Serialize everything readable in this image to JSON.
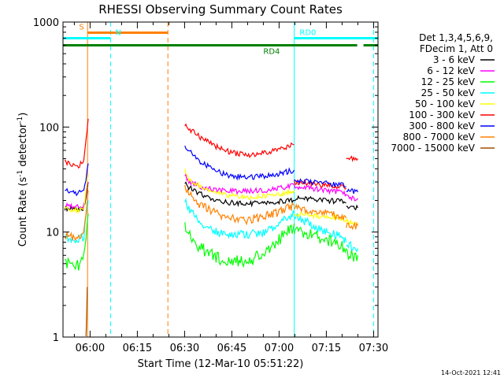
{
  "chart_data": {
    "type": "line",
    "title": "RHESSI Observing Summary Count Rates",
    "xlabel": "Start Time (12-Mar-10 05:51:22)",
    "ylabel_main": "Count Rate (s",
    "ylabel_sup1": "-1",
    "ylabel_mid": " detector",
    "ylabel_sup2": "-1",
    "ylabel_end": ")",
    "yscale": "log",
    "ylim": [
      1,
      1000
    ],
    "xlim_min": [
      -8.6,
      91.4
    ],
    "x_unit": "minutes after 06:00",
    "xticks": [
      {
        "label": "06:00",
        "min": 0
      },
      {
        "label": "06:15",
        "min": 15
      },
      {
        "label": "06:30",
        "min": 30
      },
      {
        "label": "06:45",
        "min": 45
      },
      {
        "label": "07:00",
        "min": 60
      },
      {
        "label": "07:15",
        "min": 75
      },
      {
        "label": "07:30",
        "min": 90
      }
    ],
    "yticks": [
      {
        "label": "1",
        "value": 1
      },
      {
        "label": "10",
        "value": 10
      },
      {
        "label": "100",
        "value": 100
      },
      {
        "label": "1000",
        "value": 1000
      }
    ],
    "legend_header": [
      "Det 1,3,4,5,6,9,",
      "FDecim 1, Att 0"
    ],
    "series": [
      {
        "name": "3 - 6 keV",
        "color": "#000000",
        "segments": [
          {
            "x": [
              -8.0,
              -6,
              -4,
              -2,
              -0.6
            ],
            "y": [
              17,
              16.5,
              16.5,
              17,
              30
            ]
          },
          {
            "x": [
              30.1,
              31,
              35,
              40,
              45,
              50,
              55,
              60,
              64.8
            ],
            "y": [
              30,
              27,
              23,
              20,
              19,
              18.5,
              19,
              19.5,
              20
            ]
          },
          {
            "x": [
              64.8,
              70,
              75,
              80,
              81.3
            ],
            "y": [
              21,
              20.5,
              20,
              19.5,
              19
            ]
          },
          {
            "x": [
              81.3,
              82,
              83,
              84,
              85
            ],
            "y": [
              18,
              17.5,
              17,
              17,
              17
            ]
          }
        ]
      },
      {
        "name": "6 - 12 keV",
        "color": "#ff00ff",
        "segments": [
          {
            "x": [
              -8.0,
              -6,
              -4,
              -2,
              -0.6
            ],
            "y": [
              18,
              17.5,
              17.5,
              18,
              30
            ]
          },
          {
            "x": [
              30.1,
              31,
              35,
              40,
              45,
              50,
              55,
              60,
              64.8
            ],
            "y": [
              35,
              31,
              27,
              25,
              24.5,
              24.5,
              25,
              26,
              28
            ]
          },
          {
            "x": [
              64.8,
              70,
              75,
              80,
              81.3
            ],
            "y": [
              27,
              26,
              25,
              24,
              23
            ]
          },
          {
            "x": [
              81.3,
              82,
              83,
              84,
              85
            ],
            "y": [
              22,
              21.5,
              21,
              21,
              21
            ]
          }
        ]
      },
      {
        "name": "12 - 25 keV",
        "color": "#00ff00",
        "segments": [
          {
            "x": [
              -8.0,
              -6,
              -4,
              -2,
              -0.6
            ],
            "y": [
              5.5,
              5,
              5,
              6,
              15
            ]
          },
          {
            "x": [
              30.1,
              31,
              35,
              40,
              45,
              50,
              55,
              60,
              64.8
            ],
            "y": [
              12,
              10,
              7.5,
              6,
              5.5,
              5.5,
              6.5,
              9,
              12
            ]
          },
          {
            "x": [
              64.8,
              70,
              75,
              80,
              81.3
            ],
            "y": [
              11,
              10,
              9,
              8,
              7
            ]
          },
          {
            "x": [
              81.3,
              82,
              83,
              84,
              85
            ],
            "y": [
              6.5,
              6.5,
              6.3,
              6.2,
              6
            ]
          }
        ]
      },
      {
        "name": "25 - 50 keV",
        "color": "#00ffff",
        "segments": [
          {
            "x": [
              -8.0,
              -6,
              -4,
              -2,
              -0.6
            ],
            "y": [
              9,
              8.5,
              8.5,
              9,
              20
            ]
          },
          {
            "x": [
              30.1,
              31,
              35,
              40,
              45,
              50,
              55,
              60,
              64.8
            ],
            "y": [
              20,
              17,
              12,
              10,
              9.5,
              9.5,
              10,
              12,
              15
            ]
          },
          {
            "x": [
              64.8,
              70,
              75,
              80,
              81.3
            ],
            "y": [
              14,
              12,
              10,
              9,
              8
            ]
          },
          {
            "x": [
              81.3,
              82,
              83,
              84,
              85
            ],
            "y": [
              7.5,
              7.5,
              7.3,
              7.2,
              7
            ]
          }
        ]
      },
      {
        "name": "50 - 100 keV",
        "color": "#ffff00",
        "segments": [
          {
            "x": [
              -8.0,
              -6,
              -4,
              -2,
              -0.6
            ],
            "y": [
              17,
              16,
              16,
              17,
              35
            ]
          },
          {
            "x": [
              30.1,
              31,
              35,
              40,
              45,
              50,
              55,
              60,
              64.8
            ],
            "y": [
              38,
              33,
              27,
              24,
              22,
              21.5,
              22,
              23,
              25
            ]
          },
          {
            "x": [
              64.8,
              70,
              75,
              80,
              81.3
            ],
            "y": [
              15,
              14.5,
              14,
              13.5,
              13
            ]
          },
          {
            "x": [
              81.3,
              82,
              83,
              84,
              85
            ],
            "y": [
              12.5,
              12.5,
              12.3,
              12.2,
              12
            ]
          }
        ]
      },
      {
        "name": "100 - 300 keV",
        "color": "#ff0000",
        "segments": [
          {
            "x": [
              -8.0,
              -6,
              -4,
              -2,
              -0.6
            ],
            "y": [
              48,
              43,
              42,
              48,
              120
            ]
          },
          {
            "x": [
              30.1,
              31,
              35,
              40,
              45,
              50,
              55,
              60,
              64.8
            ],
            "y": [
              105,
              98,
              80,
              65,
              57,
              54,
              56,
              62,
              68
            ]
          },
          {
            "x": [
              64.8,
              70,
              75,
              80,
              81.3
            ],
            "y": [
              30,
              29,
              28,
              27,
              26
            ]
          },
          {
            "x": [
              81.3,
              82,
              83,
              84,
              85
            ],
            "y": [
              52,
              52,
              51,
              50,
              50
            ]
          }
        ]
      },
      {
        "name": "300 - 800 keV",
        "color": "#0000ff",
        "segments": [
          {
            "x": [
              -8.0,
              -6,
              -4,
              -2,
              -0.6
            ],
            "y": [
              25,
              24,
              23.5,
              24,
              45
            ]
          },
          {
            "x": [
              30.1,
              31,
              35,
              40,
              45,
              50,
              55,
              60,
              64.8
            ],
            "y": [
              67,
              62,
              47,
              38,
              34,
              33,
              34,
              36,
              39
            ]
          },
          {
            "x": [
              64.8,
              70,
              75,
              80,
              81.3
            ],
            "y": [
              31,
              30,
              29,
              28,
              27
            ]
          },
          {
            "x": [
              81.3,
              82,
              83,
              84,
              85
            ],
            "y": [
              25,
              25,
              24.5,
              24,
              24
            ]
          }
        ]
      },
      {
        "name": "800 - 7000 keV",
        "color": "#ff8000",
        "segments": [
          {
            "x": [
              -8.0,
              -6,
              -4,
              -2,
              -0.6
            ],
            "y": [
              9.5,
              9,
              9,
              10,
              25
            ]
          },
          {
            "x": [
              30.1,
              31,
              35,
              40,
              45,
              50,
              55,
              60,
              64.8
            ],
            "y": [
              27,
              24,
              18,
              15,
              13.5,
              13,
              14,
              15.5,
              18
            ]
          },
          {
            "x": [
              64.8,
              70,
              75,
              80,
              81.3
            ],
            "y": [
              17,
              16,
              15,
              14,
              13.5
            ]
          },
          {
            "x": [
              81.3,
              82,
              83,
              84,
              85
            ],
            "y": [
              12,
              12,
              11.8,
              11.5,
              11.5
            ]
          }
        ]
      },
      {
        "name": "7000 - 15000 keV",
        "color": "#a05000",
        "segments": [
          {
            "x": [
              -1.3,
              -1.1,
              -0.9
            ],
            "y": [
              1,
              1.6,
              3
            ]
          }
        ]
      }
    ],
    "top_bars": [
      {
        "label": "S",
        "color": "#ff8000",
        "x0": -0.8,
        "x1": 24.7,
        "level": "upper",
        "label_at": -3.5
      },
      {
        "label": "N",
        "color": "#00ffff",
        "x0": -8.6,
        "x1": 6.5,
        "level": "mid",
        "label_at": 8
      },
      {
        "label": "RD0",
        "color": "#00ffff",
        "x0": 64.8,
        "x1": 91.4,
        "level": "mid",
        "label_at": 66.5
      },
      {
        "label": "RD4",
        "color": "#008000",
        "x0": -8.6,
        "x1": 91.4,
        "level": "low",
        "label_at": 55,
        "gap": [
          84.8,
          86.8
        ]
      }
    ],
    "vertical_lines": [
      {
        "min": -8.6,
        "color": "#00ffff",
        "style": "solid"
      },
      {
        "min": -0.8,
        "color": "#ff8000",
        "style": "solid"
      },
      {
        "min": 6.5,
        "color": "#00ffff",
        "style": "dashed"
      },
      {
        "min": 24.7,
        "color": "#ff8000",
        "style": "dashed"
      },
      {
        "min": 64.8,
        "color": "#00ffff",
        "style": "solid"
      },
      {
        "min": 90.0,
        "color": "#00ffff",
        "style": "dashed"
      }
    ],
    "footer": "14-Oct-2021 12:41"
  }
}
